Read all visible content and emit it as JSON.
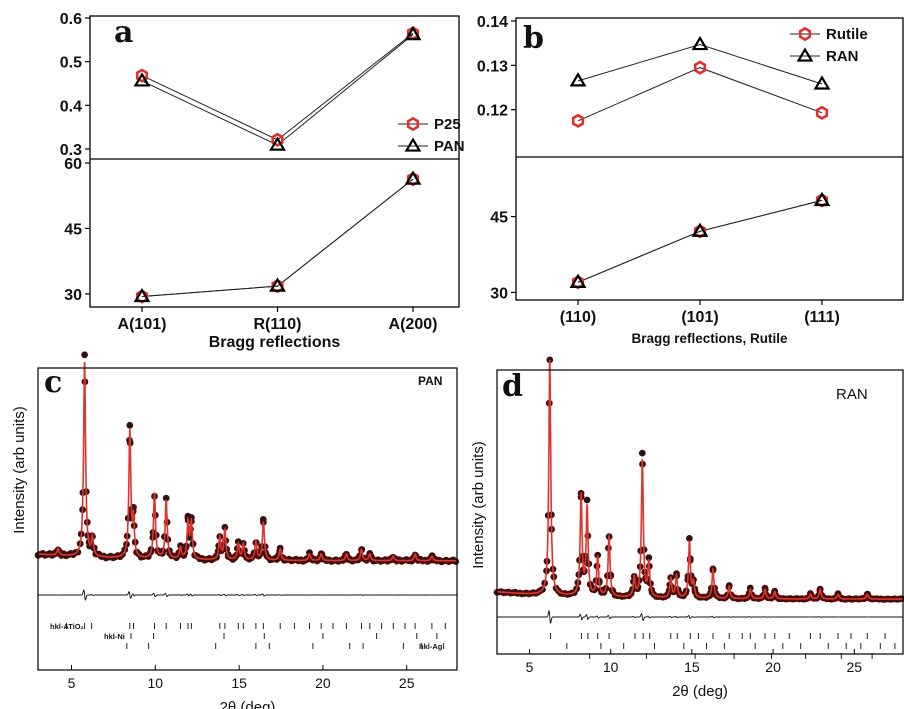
{
  "chart_data": [
    {
      "id": "a",
      "type": "line",
      "panel_label": "a",
      "xlabel": "Bragg reflections",
      "categories": [
        "A(101)",
        "R(110)",
        "A(200)"
      ],
      "top": {
        "ylim": [
          0.3,
          0.6
        ],
        "yticks": [
          "0.3",
          "0.4",
          "0.5",
          "0.6"
        ],
        "legend_position": "right",
        "series": [
          {
            "name": "P25",
            "marker": "hexagon",
            "color": "#e0302a",
            "values": [
              0.468,
              0.321,
              0.565
            ]
          },
          {
            "name": "PAN",
            "marker": "triangle",
            "color": "#000000",
            "values": [
              0.456,
              0.309,
              0.562
            ]
          }
        ]
      },
      "bottom": {
        "ylim": [
          27,
          60
        ],
        "yticks": [
          "30",
          "45",
          "60"
        ],
        "series": [
          {
            "name": "P25",
            "marker": "hexagon",
            "color": "#e0302a",
            "values": [
              29.4,
              31.8,
              56.3
            ]
          },
          {
            "name": "PAN",
            "marker": "triangle",
            "color": "#000000",
            "values": [
              29.4,
              31.8,
              56.3
            ]
          }
        ]
      }
    },
    {
      "id": "b",
      "type": "line",
      "panel_label": "b",
      "xlabel": "Bragg reflections, Rutile",
      "categories": [
        "(110)",
        "(101)",
        "(111)"
      ],
      "top": {
        "ylim": [
          0.11,
          0.14
        ],
        "yticks": [
          "0.12",
          "0.13",
          "0.14"
        ],
        "legend_position": "top-right",
        "series": [
          {
            "name": "Rutile",
            "marker": "hexagon",
            "color": "#e0302a",
            "values": [
              0.1175,
              0.1295,
              0.1193
            ]
          },
          {
            "name": "RAN",
            "marker": "triangle",
            "color": "#000000",
            "values": [
              0.1265,
              0.1347,
              0.1258
            ]
          }
        ]
      },
      "bottom": {
        "ylim": [
          28.5,
          56
        ],
        "yticks": [
          "30",
          "45"
        ],
        "series": [
          {
            "name": "Rutile",
            "marker": "hexagon",
            "color": "#e0302a",
            "values": [
              32.0,
              42.1,
              48.2
            ]
          },
          {
            "name": "RAN",
            "marker": "triangle",
            "color": "#000000",
            "values": [
              32.0,
              42.1,
              48.2
            ]
          }
        ]
      }
    },
    {
      "id": "c",
      "type": "line",
      "panel_label": "c",
      "annotation": "PAN",
      "xlabel": "2θ (deg)",
      "ylabel": "Intensity (arb units)",
      "xlim": [
        3,
        28
      ],
      "xticks": [
        5,
        10,
        15,
        20,
        25
      ],
      "background": 0.12,
      "peaks": [
        {
          "x": 4.2,
          "h": 0.03,
          "w": 0.07
        },
        {
          "x": 5.78,
          "h": 0.86,
          "w": 0.07
        },
        {
          "x": 6.25,
          "h": 0.08,
          "w": 0.07
        },
        {
          "x": 8.48,
          "h": 0.56,
          "w": 0.07
        },
        {
          "x": 8.7,
          "h": 0.16,
          "w": 0.06
        },
        {
          "x": 9.95,
          "h": 0.29,
          "w": 0.07
        },
        {
          "x": 10.65,
          "h": 0.26,
          "w": 0.07
        },
        {
          "x": 11.5,
          "h": 0.05,
          "w": 0.07
        },
        {
          "x": 11.95,
          "h": 0.16,
          "w": 0.07
        },
        {
          "x": 12.15,
          "h": 0.16,
          "w": 0.07
        },
        {
          "x": 13.85,
          "h": 0.1,
          "w": 0.07
        },
        {
          "x": 14.15,
          "h": 0.13,
          "w": 0.07
        },
        {
          "x": 14.95,
          "h": 0.07,
          "w": 0.07
        },
        {
          "x": 15.25,
          "h": 0.07,
          "w": 0.07
        },
        {
          "x": 16.0,
          "h": 0.08,
          "w": 0.07
        },
        {
          "x": 16.45,
          "h": 0.17,
          "w": 0.07
        },
        {
          "x": 17.45,
          "h": 0.05,
          "w": 0.07
        },
        {
          "x": 19.2,
          "h": 0.03,
          "w": 0.07
        },
        {
          "x": 19.9,
          "h": 0.03,
          "w": 0.07
        },
        {
          "x": 21.4,
          "h": 0.03,
          "w": 0.07
        },
        {
          "x": 22.3,
          "h": 0.05,
          "w": 0.07
        },
        {
          "x": 22.8,
          "h": 0.03,
          "w": 0.07
        },
        {
          "x": 24.2,
          "h": 0.02,
          "w": 0.07
        },
        {
          "x": 25.5,
          "h": 0.03,
          "w": 0.07
        },
        {
          "x": 26.5,
          "h": 0.02,
          "w": 0.07
        }
      ],
      "tick_rows": [
        {
          "label": "hkl-ATiO₂",
          "positions": [
            4.7,
            5.78,
            6.2,
            8.48,
            8.7,
            9.95,
            10.65,
            11.5,
            11.95,
            12.15,
            13.85,
            14.15,
            14.95,
            15.25,
            16.0,
            16.45,
            17.45,
            18.3,
            19.2,
            19.9,
            20.6,
            21.4,
            22.3,
            22.8,
            23.5,
            24.2,
            24.9,
            25.5,
            26.5,
            27.3
          ]
        },
        {
          "label": "hkl-Ni",
          "positions": [
            8.55,
            9.9,
            14.1,
            16.5,
            20.0,
            23.2,
            25.6,
            26.8
          ]
        },
        {
          "label": "hkl-Ag",
          "positions": [
            8.3,
            9.6,
            13.6,
            16.0,
            16.8,
            19.4,
            21.6,
            22.4,
            24.8,
            25.9,
            27.2
          ]
        }
      ]
    },
    {
      "id": "d",
      "type": "line",
      "panel_label": "d",
      "annotation": "RAN",
      "xlabel": "2θ (deg)",
      "ylabel": "Intensity (arb units)",
      "xlim": [
        3,
        28
      ],
      "xticks": [
        5,
        10,
        15,
        20,
        25
      ],
      "background": 0.04,
      "peaks": [
        {
          "x": 6.25,
          "h": 0.96,
          "w": 0.07
        },
        {
          "x": 8.18,
          "h": 0.41,
          "w": 0.07
        },
        {
          "x": 8.55,
          "h": 0.36,
          "w": 0.07
        },
        {
          "x": 9.2,
          "h": 0.16,
          "w": 0.07
        },
        {
          "x": 9.9,
          "h": 0.25,
          "w": 0.07
        },
        {
          "x": 11.45,
          "h": 0.08,
          "w": 0.07
        },
        {
          "x": 11.95,
          "h": 0.56,
          "w": 0.07
        },
        {
          "x": 12.35,
          "h": 0.14,
          "w": 0.07
        },
        {
          "x": 13.7,
          "h": 0.08,
          "w": 0.07
        },
        {
          "x": 14.05,
          "h": 0.09,
          "w": 0.07
        },
        {
          "x": 14.85,
          "h": 0.23,
          "w": 0.07
        },
        {
          "x": 15.1,
          "h": 0.06,
          "w": 0.07
        },
        {
          "x": 16.3,
          "h": 0.12,
          "w": 0.07
        },
        {
          "x": 17.3,
          "h": 0.05,
          "w": 0.07
        },
        {
          "x": 18.6,
          "h": 0.04,
          "w": 0.07
        },
        {
          "x": 19.5,
          "h": 0.04,
          "w": 0.07
        },
        {
          "x": 20.1,
          "h": 0.03,
          "w": 0.07
        },
        {
          "x": 22.3,
          "h": 0.02,
          "w": 0.07
        },
        {
          "x": 22.9,
          "h": 0.04,
          "w": 0.07
        },
        {
          "x": 24.0,
          "h": 0.02,
          "w": 0.07
        },
        {
          "x": 25.8,
          "h": 0.02,
          "w": 0.07
        }
      ],
      "tick_rows": [
        {
          "label": "",
          "positions": [
            6.3,
            8.2,
            8.6,
            9.2,
            9.9,
            11.5,
            12.0,
            12.4,
            13.7,
            14.1,
            14.9,
            15.4,
            16.3,
            17.3,
            18.1,
            18.6,
            19.5,
            20.1,
            21.0,
            22.3,
            22.9,
            24.0,
            24.8,
            25.8,
            26.9
          ]
        },
        {
          "label": "",
          "positions": [
            7.3,
            9.4,
            10.8,
            12.7,
            14.5,
            15.9,
            17.0,
            18.9,
            20.6,
            21.7,
            23.4,
            24.5,
            25.4,
            26.6,
            27.5
          ]
        },
        {
          "label": "",
          "positions": [
            8.7,
            12.2,
            15.2,
            17.6,
            19.9,
            22.0,
            24.2,
            26.1
          ]
        }
      ]
    }
  ]
}
